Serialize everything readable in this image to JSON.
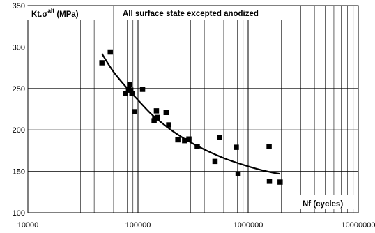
{
  "chart_data": {
    "type": "scatter",
    "title": "All surface state excepted anodized",
    "xlabel": "Nf (cycles)",
    "ylabel_main": "Kt.σ",
    "ylabel_sup": "alt",
    "ylabel_unit": " (MPa)",
    "x_scale": "log",
    "xlim": [
      10000,
      10000000
    ],
    "ylim": [
      100,
      350
    ],
    "x_ticks": [
      10000,
      100000,
      1000000,
      10000000
    ],
    "x_tick_labels": [
      "10000",
      "100000",
      "1000000",
      "10000000"
    ],
    "y_ticks": [
      100,
      150,
      200,
      250,
      300,
      350
    ],
    "y_tick_labels": [
      "100",
      "150",
      "200",
      "250",
      "300",
      "350"
    ],
    "grid": true,
    "series": [
      {
        "type": "scatter",
        "marker": "square",
        "color": "#000000",
        "points": [
          [
            47000,
            281
          ],
          [
            56000,
            294
          ],
          [
            77000,
            244
          ],
          [
            82000,
            249
          ],
          [
            84000,
            255
          ],
          [
            86000,
            248
          ],
          [
            88000,
            244
          ],
          [
            93000,
            222
          ],
          [
            110000,
            249
          ],
          [
            140000,
            211
          ],
          [
            142000,
            214
          ],
          [
            147000,
            223
          ],
          [
            150000,
            215
          ],
          [
            180000,
            221
          ],
          [
            190000,
            206
          ],
          [
            230000,
            188
          ],
          [
            265000,
            187
          ],
          [
            290000,
            189
          ],
          [
            345000,
            180
          ],
          [
            500000,
            162
          ],
          [
            550000,
            191
          ],
          [
            780000,
            179
          ],
          [
            810000,
            147
          ],
          [
            1550000,
            180
          ],
          [
            1560000,
            138
          ],
          [
            1950000,
            137
          ]
        ]
      },
      {
        "type": "line",
        "color": "#000000",
        "points": [
          [
            47000,
            292
          ],
          [
            60000,
            270
          ],
          [
            80000,
            250
          ],
          [
            100000,
            236
          ],
          [
            130000,
            220
          ],
          [
            170000,
            207
          ],
          [
            220000,
            196
          ],
          [
            300000,
            185
          ],
          [
            420000,
            175
          ],
          [
            600000,
            166
          ],
          [
            850000,
            159
          ],
          [
            1200000,
            153
          ],
          [
            1600000,
            149
          ],
          [
            1950000,
            147
          ]
        ]
      }
    ]
  }
}
